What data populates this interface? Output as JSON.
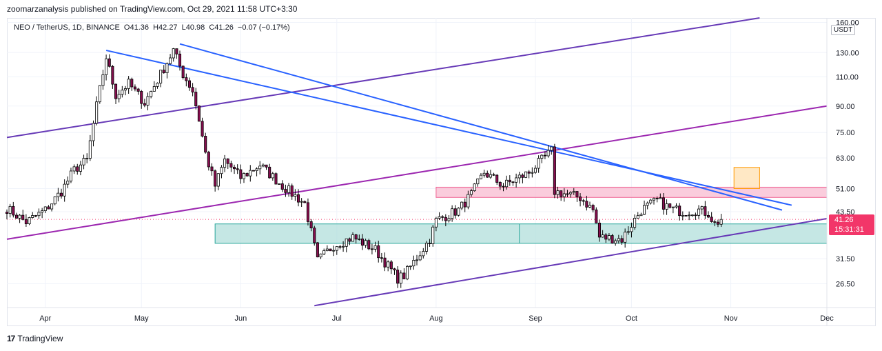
{
  "header": {
    "publisher_line": "zoomarzanalysis published on TradingView.com, Oct 29, 2021 11:58 UTC+3:30"
  },
  "legend": {
    "symbol": "NEO / TetherUS, 1D, BINANCE",
    "open": "O41.36",
    "high": "H42.27",
    "low": "L40.98",
    "close": "C41.26",
    "change": "−0.07 (−0.17%)"
  },
  "price_axis": {
    "currency": "USDT"
  },
  "last_price": {
    "value": "41.26",
    "countdown": "15:31:31"
  },
  "footer": {
    "brand": "TradingView"
  },
  "colors": {
    "up": "#ffffff",
    "down": "#880e4f",
    "channel_purple": "#673ab7",
    "channel_magenta": "#9c27b0",
    "trend_blue": "#2962ff",
    "support_zone": "#b2dfdb",
    "resistance_zone": "#f8bbd0",
    "target_box": "#ffe0b2",
    "last_price": "#f23669"
  },
  "chart_data": {
    "type": "candlestick",
    "scale": "log",
    "ylim": [
      22.5,
      165
    ],
    "y_ticks": [
      "26.50",
      "31.50",
      "43.50",
      "51.00",
      "63.00",
      "75.00",
      "90.00",
      "110.00",
      "130.00",
      "160.00"
    ],
    "x_ticks": [
      "Apr",
      "May",
      "Jun",
      "Jul",
      "Aug",
      "Sep",
      "Oct",
      "Nov",
      "Dec"
    ],
    "x_range": [
      "2021-03-20",
      "2021-12-01"
    ],
    "last_close": 41.26,
    "anchors": [
      [
        "2021-03-20",
        44.5
      ],
      [
        "2021-03-26",
        40.5
      ],
      [
        "2021-04-01",
        44.0
      ],
      [
        "2021-04-06",
        50.0
      ],
      [
        "2021-04-10",
        58.0
      ],
      [
        "2021-04-14",
        62.0
      ],
      [
        "2021-04-17",
        90.0
      ],
      [
        "2021-04-20",
        126.0
      ],
      [
        "2021-04-23",
        97.0
      ],
      [
        "2021-04-27",
        105.0
      ],
      [
        "2021-05-02",
        92.0
      ],
      [
        "2021-05-07",
        112.0
      ],
      [
        "2021-05-11",
        132.0
      ],
      [
        "2021-05-14",
        112.0
      ],
      [
        "2021-05-17",
        100.0
      ],
      [
        "2021-05-19",
        82.0
      ],
      [
        "2021-05-21",
        65.0
      ],
      [
        "2021-05-24",
        52.0
      ],
      [
        "2021-05-27",
        62.0
      ],
      [
        "2021-06-01",
        55.0
      ],
      [
        "2021-06-07",
        60.0
      ],
      [
        "2021-06-14",
        52.0
      ],
      [
        "2021-06-21",
        46.0
      ],
      [
        "2021-06-25",
        31.0
      ],
      [
        "2021-06-30",
        34.5
      ],
      [
        "2021-07-06",
        36.5
      ],
      [
        "2021-07-13",
        33.5
      ],
      [
        "2021-07-20",
        27.5
      ],
      [
        "2021-07-22",
        28.0
      ],
      [
        "2021-07-30",
        36.0
      ],
      [
        "2021-08-01",
        41.0
      ],
      [
        "2021-08-08",
        44.0
      ],
      [
        "2021-08-12",
        49.0
      ],
      [
        "2021-08-16",
        57.0
      ],
      [
        "2021-08-22",
        52.0
      ],
      [
        "2021-08-30",
        57.0
      ],
      [
        "2021-09-06",
        66.0
      ],
      [
        "2021-09-07",
        50.0
      ],
      [
        "2021-09-15",
        48.0
      ],
      [
        "2021-09-19",
        44.0
      ],
      [
        "2021-09-21",
        36.5
      ],
      [
        "2021-09-28",
        36.0
      ],
      [
        "2021-10-04",
        44.0
      ],
      [
        "2021-10-09",
        47.0
      ],
      [
        "2021-10-13",
        44.5
      ],
      [
        "2021-10-17",
        43.5
      ],
      [
        "2021-10-22",
        44.0
      ],
      [
        "2021-10-25",
        43.0
      ],
      [
        "2021-10-27",
        40.0
      ],
      [
        "2021-10-29",
        41.26
      ]
    ],
    "drawings": {
      "lines": [
        {
          "name": "purple-upper-channel",
          "color": "#673ab7",
          "p1": [
            "2021-03-20",
            72.5
          ],
          "p2": [
            "2021-11-10",
            165
          ]
        },
        {
          "name": "purple-lower-channel",
          "color": "#673ab7",
          "p1": [
            "2021-06-24",
            22.8
          ],
          "p2": [
            "2021-12-01",
            41.5
          ]
        },
        {
          "name": "magenta-middle-channel",
          "color": "#9c27b0",
          "p1": [
            "2021-03-20",
            36.0
          ],
          "p2": [
            "2021-12-01",
            90.0
          ]
        },
        {
          "name": "blue-trendline-1",
          "color": "#2962ff",
          "p1": [
            "2021-04-20",
            132.0
          ],
          "p2": [
            "2021-11-20",
            45.5
          ]
        },
        {
          "name": "blue-trendline-2",
          "color": "#2962ff",
          "p1": [
            "2021-05-13",
            138.0
          ],
          "p2": [
            "2021-11-17",
            44.0
          ]
        }
      ],
      "zones": [
        {
          "name": "support-zone",
          "fill": "#b2dfdb",
          "x1": "2021-05-24",
          "x2": "2021-12-01",
          "y1": 35.0,
          "y2": 40.0
        },
        {
          "name": "resistance-zone",
          "fill": "#f8bbd0",
          "x1": "2021-08-01",
          "x2": "2021-12-01",
          "y1": 48.0,
          "y2": 51.5
        },
        {
          "name": "target-box",
          "fill": "#ffe0b2",
          "x1": "2021-11-02",
          "x2": "2021-11-10",
          "y1": 51.0,
          "y2": 59.0
        }
      ]
    }
  }
}
